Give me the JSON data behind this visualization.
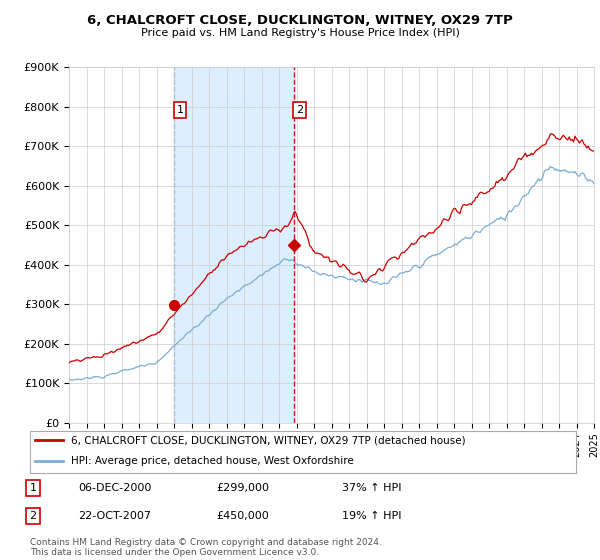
{
  "title": "6, CHALCROFT CLOSE, DUCKLINGTON, WITNEY, OX29 7TP",
  "subtitle": "Price paid vs. HM Land Registry's House Price Index (HPI)",
  "ylabel_ticks": [
    "£0",
    "£100K",
    "£200K",
    "£300K",
    "£400K",
    "£500K",
    "£600K",
    "£700K",
    "£800K",
    "£900K"
  ],
  "ylim": [
    0,
    900000
  ],
  "xlim_start": 1995,
  "xlim_end": 2025,
  "hpi_color": "#7aaed6",
  "price_color": "#cc0000",
  "sale1_x": 2001.0,
  "sale1_y": 299000,
  "sale1_label": "1",
  "sale2_x": 2007.83,
  "sale2_y": 450000,
  "sale2_label": "2",
  "vline1_x": 2001.0,
  "vline2_x": 2007.83,
  "shade_color": "#ddeeff",
  "legend_price_label": "6, CHALCROFT CLOSE, DUCKLINGTON, WITNEY, OX29 7TP (detached house)",
  "legend_hpi_label": "HPI: Average price, detached house, West Oxfordshire",
  "table_rows": [
    {
      "num": "1",
      "date": "06-DEC-2000",
      "price": "£299,000",
      "change": "37% ↑ HPI"
    },
    {
      "num": "2",
      "date": "22-OCT-2007",
      "price": "£450,000",
      "change": "19% ↑ HPI"
    }
  ],
  "footnote": "Contains HM Land Registry data © Crown copyright and database right 2024.\nThis data is licensed under the Open Government Licence v3.0.",
  "background_color": "#ffffff"
}
